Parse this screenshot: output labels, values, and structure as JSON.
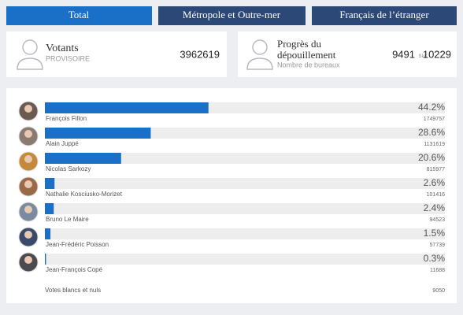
{
  "tabs": [
    "Total",
    "Métropole et Outre-mer",
    "Français de l’étranger"
  ],
  "summary": {
    "votants": {
      "title": "Votants",
      "subtitle": "PROVISOIRE",
      "value": 3962619
    },
    "progress": {
      "title_line1": "Progrès du",
      "title_line2": "dépouillement",
      "subtitle": "Nombre de bureaux",
      "counted": 9491,
      "separator": "sur",
      "total": 10229
    }
  },
  "chart_data": {
    "type": "bar",
    "orientation": "horizontal",
    "categories": [
      "François Fillon",
      "Alain Juppé",
      "Nicolas Sarkozy",
      "Nathalie Kosciusko-Morizet",
      "Bruno Le Maire",
      "Jean-Frédéric Poisson",
      "Jean-François Copé"
    ],
    "values": [
      44.2,
      28.6,
      20.6,
      2.6,
      2.4,
      1.5,
      0.3
    ],
    "value_labels": [
      "44.2%",
      "28.6%",
      "20.6%",
      "2.6%",
      "2.4%",
      "1.5%",
      "0.3%"
    ],
    "votes": [
      1749757,
      1131619,
      815977,
      101416,
      94523,
      57739,
      11688
    ],
    "color": "#1a70c6",
    "xlim": [
      0,
      100
    ],
    "blank_label": "Votes blancs et nuls",
    "blank_votes": 9050
  }
}
